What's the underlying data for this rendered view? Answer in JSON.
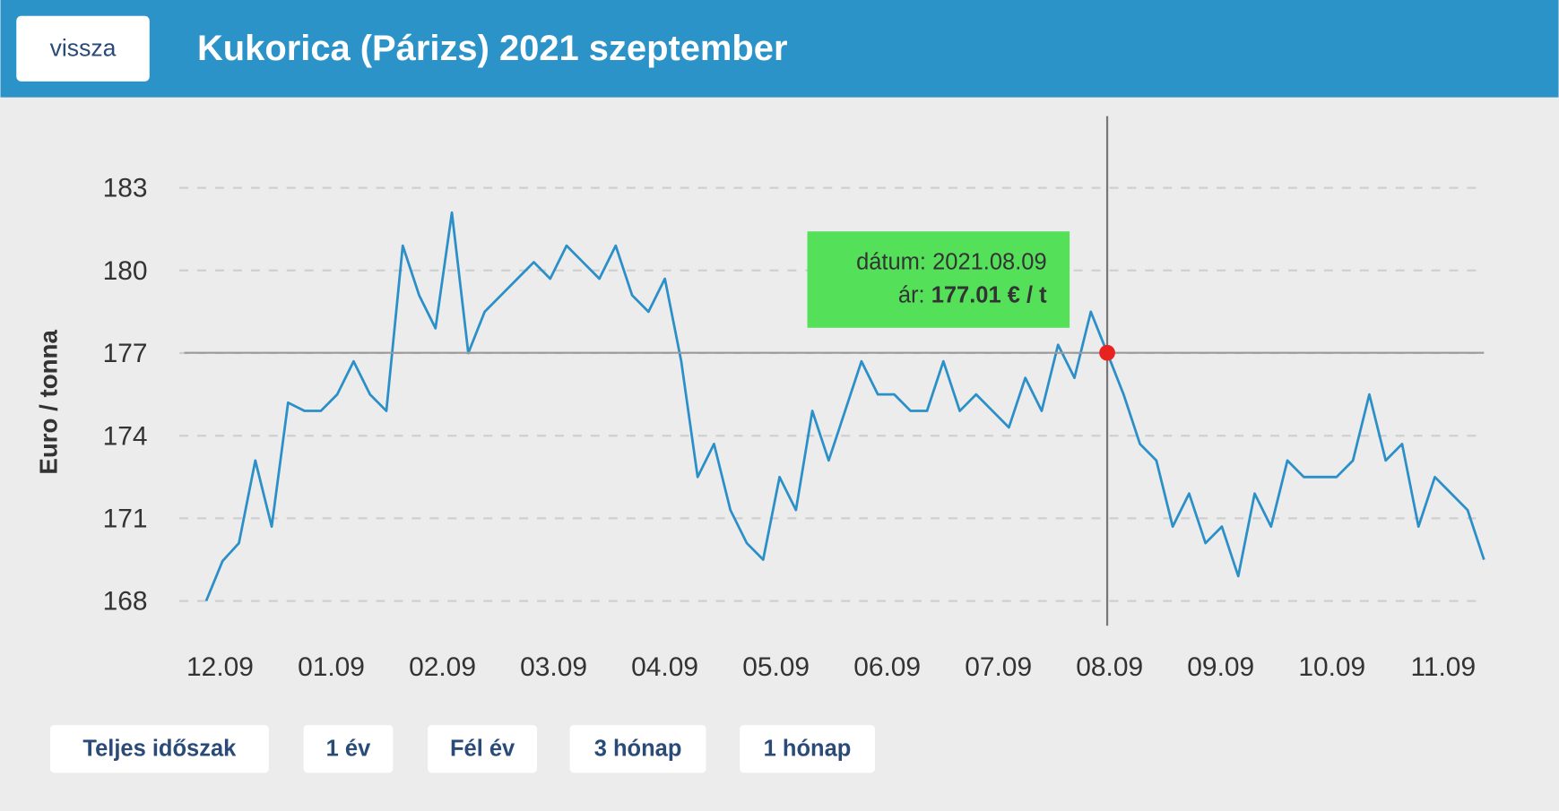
{
  "header": {
    "back_button": "vissza",
    "title": "Kukorica (Párizs) 2021 szeptember"
  },
  "chart_data": {
    "type": "line",
    "y_label": "Euro / tonna",
    "color": "#2b8fc8",
    "grid": true,
    "xtick_labels": [
      "12.09",
      "01.09",
      "02.09",
      "03.09",
      "04.09",
      "05.09",
      "06.09",
      "07.09",
      "08.09",
      "09.09",
      "10.09",
      "11.09"
    ],
    "values": [
      168.0,
      169.45,
      170.1,
      173.1,
      170.7,
      175.2,
      174.9,
      174.9,
      175.5,
      176.7,
      175.5,
      174.9,
      180.9,
      179.1,
      177.9,
      182.1,
      177.0,
      178.5,
      179.1,
      179.7,
      180.3,
      179.7,
      180.9,
      180.3,
      179.7,
      180.9,
      179.1,
      178.5,
      179.7,
      176.7,
      172.5,
      173.7,
      171.3,
      170.1,
      169.5,
      172.5,
      171.3,
      174.9,
      173.1,
      174.9,
      176.7,
      175.5,
      175.5,
      174.9,
      174.9,
      176.7,
      174.9,
      175.5,
      174.9,
      174.3,
      176.1,
      174.9,
      177.3,
      176.1,
      178.5,
      177.01,
      175.5,
      173.7,
      173.1,
      170.7,
      171.9,
      170.1,
      170.7,
      168.9,
      171.9,
      170.7,
      173.1,
      172.5,
      172.5,
      172.5,
      173.1,
      175.5,
      173.1,
      173.7,
      170.7,
      172.5,
      171.9,
      171.3,
      169.5
    ],
    "ylim": [
      167.1,
      185.6
    ],
    "yticks": [
      168,
      171,
      174,
      177,
      180,
      183
    ],
    "tooltip": {
      "date_prefix": "dátum:",
      "date": "2021.08.09",
      "price_prefix": "ár:",
      "price": {
        "value": 177.01,
        "label": "177.01 € / t"
      }
    }
  },
  "range_buttons": [
    "Teljes időszak",
    "1 év",
    "Fél év",
    "3 hónap",
    "1 hónap"
  ]
}
